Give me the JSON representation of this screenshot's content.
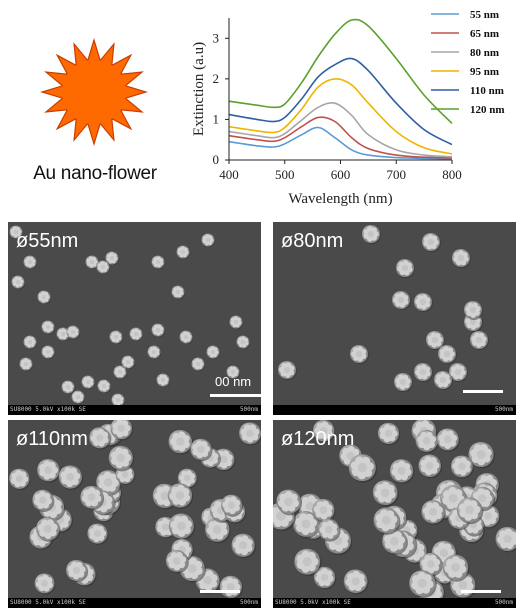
{
  "nanoflower_label": "Au nano-flower",
  "chart_data": {
    "type": "line",
    "xlabel": "Wavelength (nm)",
    "ylabel": "Extinction (a.u)",
    "xlim": [
      400,
      800
    ],
    "ylim": [
      0,
      3.5
    ],
    "x_ticks": [
      "400",
      "500",
      "600",
      "700",
      "800"
    ],
    "y_ticks": [
      "0",
      "1",
      "2",
      "3"
    ],
    "legend_position": "right",
    "grid": false,
    "x": [
      400,
      450,
      480,
      500,
      530,
      560,
      590,
      620,
      650,
      700,
      750,
      800
    ],
    "series": [
      {
        "name": "55 nm",
        "color": "#5b9bd5",
        "values": [
          0.45,
          0.35,
          0.32,
          0.4,
          0.62,
          0.8,
          0.55,
          0.25,
          0.12,
          0.06,
          0.04,
          0.03
        ]
      },
      {
        "name": "65 nm",
        "color": "#c0504d",
        "values": [
          0.6,
          0.5,
          0.46,
          0.55,
          0.82,
          1.05,
          0.95,
          0.55,
          0.28,
          0.12,
          0.07,
          0.05
        ]
      },
      {
        "name": "80 nm",
        "color": "#a6a6a6",
        "values": [
          0.7,
          0.6,
          0.55,
          0.65,
          0.98,
          1.3,
          1.4,
          1.1,
          0.62,
          0.25,
          0.12,
          0.08
        ]
      },
      {
        "name": "95 nm",
        "color": "#f0b400",
        "values": [
          0.82,
          0.72,
          0.68,
          0.8,
          1.25,
          1.8,
          2.0,
          1.85,
          1.4,
          0.7,
          0.3,
          0.15
        ]
      },
      {
        "name": "110 nm",
        "color": "#2e5fa3",
        "values": [
          1.12,
          1.0,
          0.95,
          1.05,
          1.5,
          2.05,
          2.35,
          2.5,
          2.2,
          1.4,
          0.75,
          0.38
        ]
      },
      {
        "name": "120 nm",
        "color": "#5aa02c",
        "values": [
          1.45,
          1.35,
          1.3,
          1.38,
          1.9,
          2.55,
          3.1,
          3.45,
          3.3,
          2.5,
          1.6,
          0.9
        ]
      }
    ]
  },
  "colors": {
    "nanoflower_fill": "#ff6a00",
    "nanoflower_spikes": "#c83c00",
    "sem_background": "#4a4a4a"
  },
  "panels": [
    {
      "label": "ø55nm",
      "info_left": "SU8000 5.0kV x100k SE",
      "info_right": "500nm",
      "scale_label": "00 nm"
    },
    {
      "label": "ø80nm",
      "info_left": "",
      "info_right": "500nm",
      "scale_label": ""
    },
    {
      "label": "ø110nm",
      "info_left": "SU8000 5.0kV x100k SE",
      "info_right": "500nm",
      "scale_label": ""
    },
    {
      "label": "ø120nm",
      "info_left": "SU8000 5.0kV x100k SE",
      "info_right": "500nm",
      "scale_label": ""
    }
  ]
}
